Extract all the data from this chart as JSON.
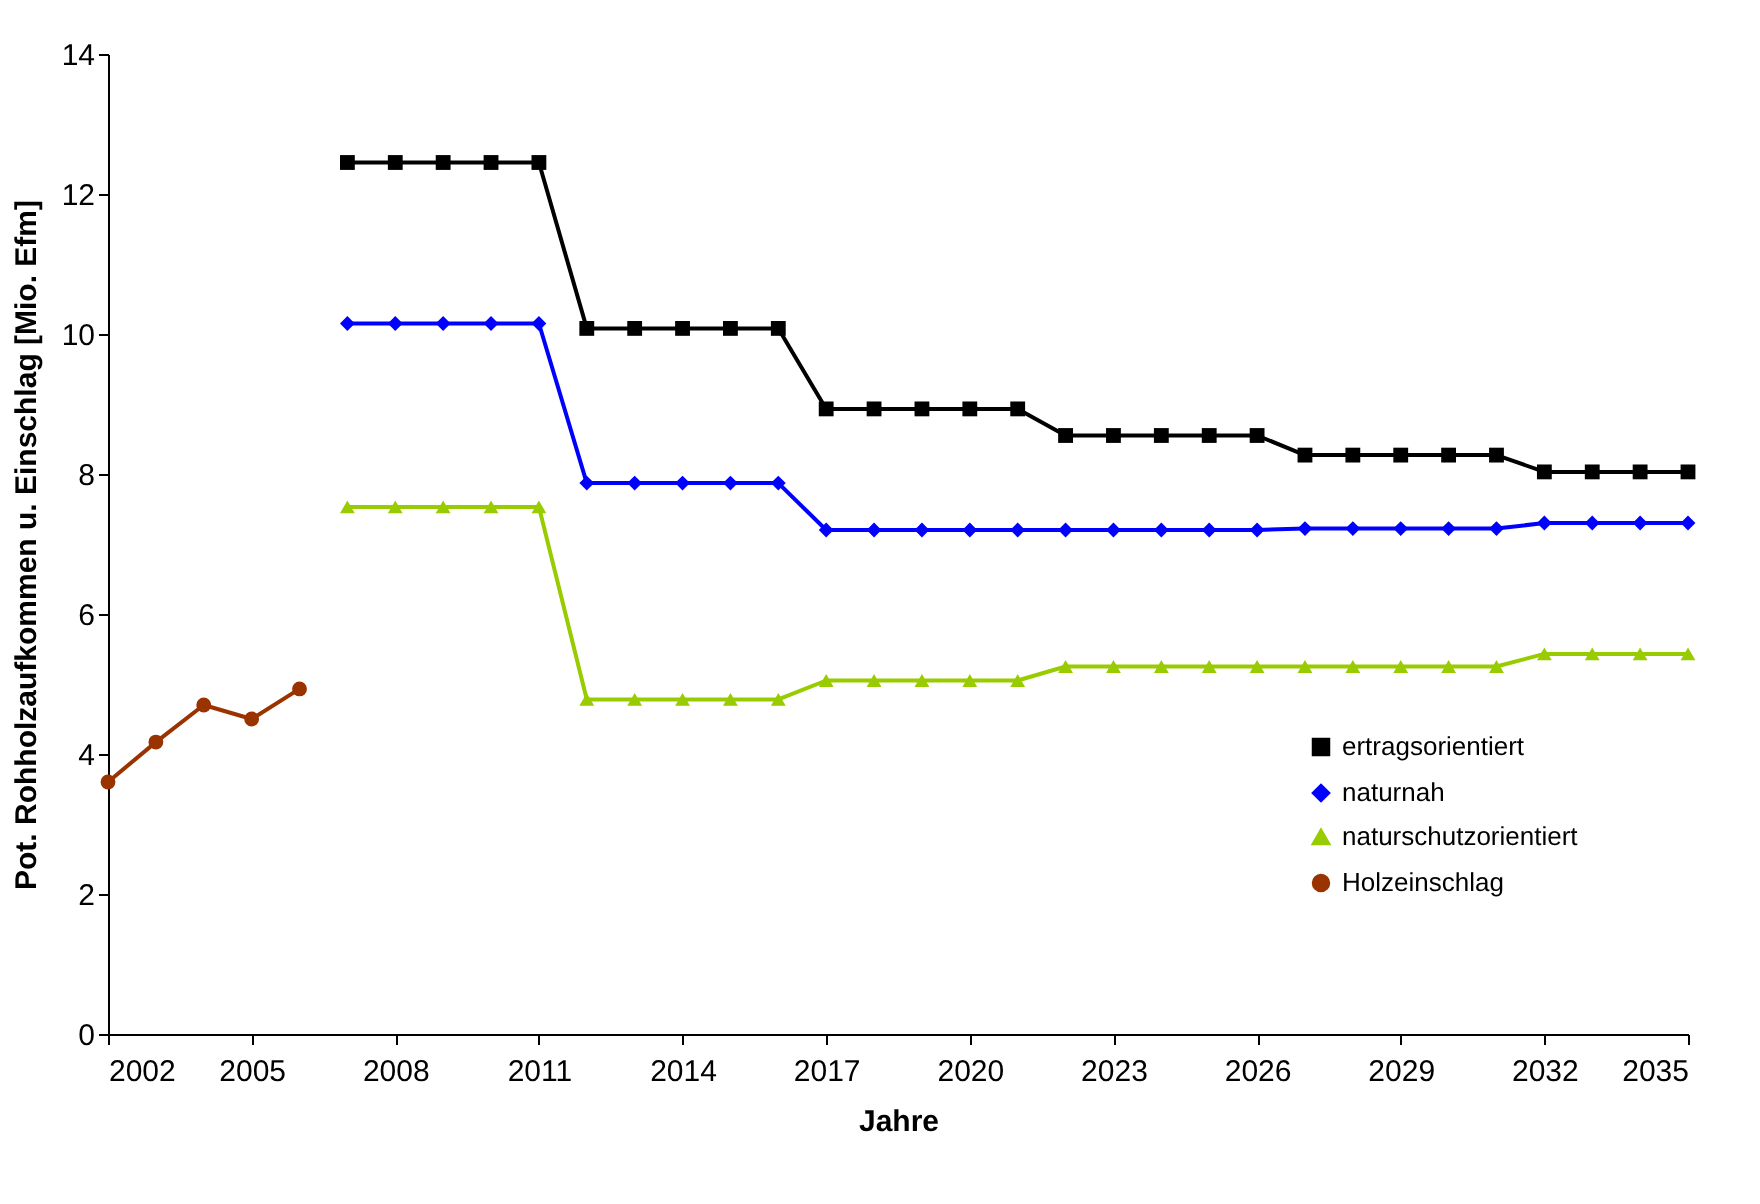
{
  "chart_data": {
    "type": "line",
    "xlabel": "Jahre",
    "ylabel": "Pot. Rohholzaufkommen u. Einschlag [Mio. Efm]",
    "x": [
      2002,
      2003,
      2004,
      2005,
      2006,
      2007,
      2008,
      2009,
      2010,
      2011,
      2012,
      2013,
      2014,
      2015,
      2016,
      2017,
      2018,
      2019,
      2020,
      2021,
      2022,
      2023,
      2024,
      2025,
      2026,
      2027,
      2028,
      2029,
      2030,
      2031,
      2032,
      2033,
      2034,
      2035
    ],
    "series": [
      {
        "name": "ertragsorientiert",
        "color": "#000000",
        "marker": "square",
        "values": [
          null,
          null,
          null,
          null,
          null,
          12.45,
          12.45,
          12.45,
          12.45,
          12.45,
          10.08,
          10.08,
          10.08,
          10.08,
          10.08,
          8.93,
          8.93,
          8.93,
          8.93,
          8.93,
          8.55,
          8.55,
          8.55,
          8.55,
          8.55,
          8.27,
          8.27,
          8.27,
          8.27,
          8.27,
          8.03,
          8.03,
          8.03,
          8.03
        ]
      },
      {
        "name": "naturnah",
        "color": "#0000ff",
        "marker": "diamond",
        "values": [
          null,
          null,
          null,
          null,
          null,
          10.15,
          10.15,
          10.15,
          10.15,
          10.15,
          7.87,
          7.87,
          7.87,
          7.87,
          7.87,
          7.2,
          7.2,
          7.2,
          7.2,
          7.2,
          7.2,
          7.2,
          7.2,
          7.2,
          7.2,
          7.22,
          7.22,
          7.22,
          7.22,
          7.22,
          7.3,
          7.3,
          7.3,
          7.3
        ]
      },
      {
        "name": "naturschutzorientiert",
        "color": "#99cc00",
        "marker": "triangle",
        "values": [
          null,
          null,
          null,
          null,
          null,
          7.53,
          7.53,
          7.53,
          7.53,
          7.53,
          4.78,
          4.78,
          4.78,
          4.78,
          4.78,
          5.05,
          5.05,
          5.05,
          5.05,
          5.05,
          5.25,
          5.25,
          5.25,
          5.25,
          5.25,
          5.25,
          5.25,
          5.25,
          5.25,
          5.25,
          5.43,
          5.43,
          5.43,
          5.43
        ]
      },
      {
        "name": "Holzeinschlag",
        "color": "#993300",
        "marker": "circle",
        "values": [
          3.6,
          4.17,
          4.7,
          4.5,
          4.93,
          null,
          null,
          null,
          null,
          null,
          null,
          null,
          null,
          null,
          null,
          null,
          null,
          null,
          null,
          null,
          null,
          null,
          null,
          null,
          null,
          null,
          null,
          null,
          null,
          null,
          null,
          null,
          null,
          null
        ]
      }
    ],
    "xlim": [
      2002,
      2035
    ],
    "xticks": [
      2002,
      2005,
      2008,
      2011,
      2014,
      2017,
      2020,
      2023,
      2026,
      2029,
      2032,
      2035
    ],
    "ylim": [
      0,
      14
    ],
    "yticks": [
      0,
      2,
      4,
      6,
      8,
      10,
      12,
      14
    ],
    "grid": false,
    "legend": "bottom right",
    "line_style": "solid"
  }
}
